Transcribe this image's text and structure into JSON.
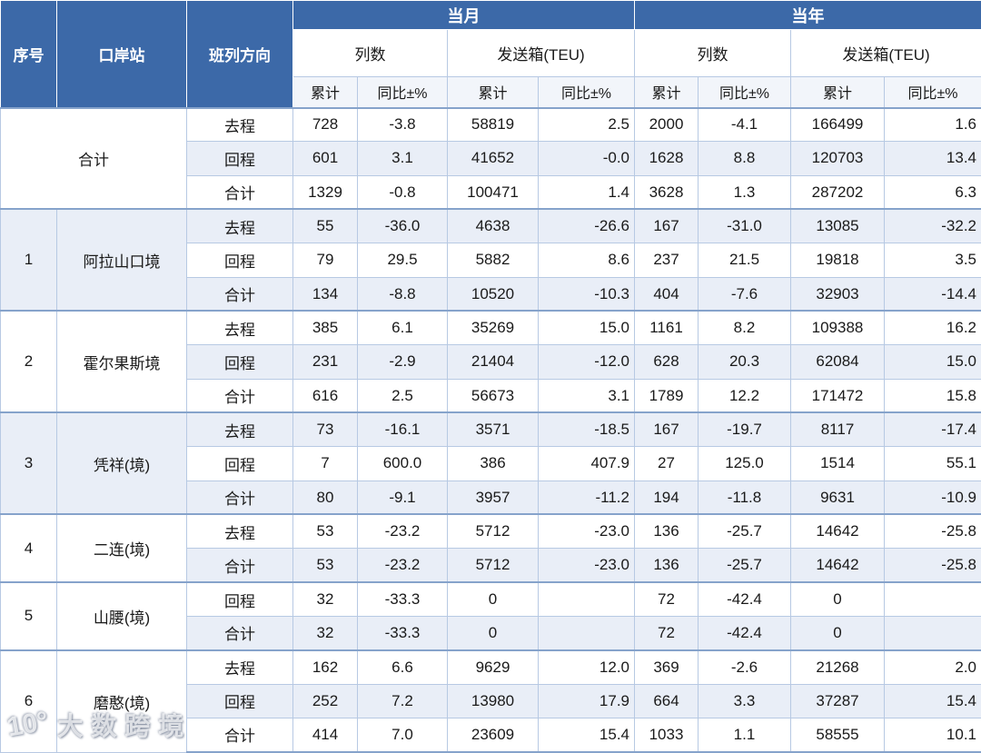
{
  "colors": {
    "header_blue": "#3C69A8",
    "stripe": "#E9EEF7",
    "border": "#B7C9E3",
    "section_border": "#86A3CB"
  },
  "watermark": {
    "logo_text": "10°",
    "text": "大数跨境"
  },
  "table": {
    "header": {
      "col_serial": "序号",
      "col_station": "口岸站",
      "col_direction": "班列方向",
      "group_month": "当月",
      "group_year": "当年",
      "sub_trains": "列数",
      "sub_teu": "发送箱(TEU)",
      "leaf_cum": "累计",
      "leaf_yoy": "同比±%"
    },
    "sections": [
      {
        "serial": "",
        "station": "合计",
        "merged": true,
        "rows": [
          {
            "direction": "去程",
            "values": [
              "728",
              "-3.8",
              "58819",
              "2.5",
              "2000",
              "-4.1",
              "166499",
              "1.6"
            ]
          },
          {
            "direction": "回程",
            "values": [
              "601",
              "3.1",
              "41652",
              "-0.0",
              "1628",
              "8.8",
              "120703",
              "13.4"
            ]
          },
          {
            "direction": "合计",
            "values": [
              "1329",
              "-0.8",
              "100471",
              "1.4",
              "3628",
              "1.3",
              "287202",
              "6.3"
            ]
          }
        ]
      },
      {
        "serial": "1",
        "station": "阿拉山口境",
        "rows": [
          {
            "direction": "去程",
            "values": [
              "55",
              "-36.0",
              "4638",
              "-26.6",
              "167",
              "-31.0",
              "13085",
              "-32.2"
            ]
          },
          {
            "direction": "回程",
            "values": [
              "79",
              "29.5",
              "5882",
              "8.6",
              "237",
              "21.5",
              "19818",
              "3.5"
            ]
          },
          {
            "direction": "合计",
            "values": [
              "134",
              "-8.8",
              "10520",
              "-10.3",
              "404",
              "-7.6",
              "32903",
              "-14.4"
            ]
          }
        ]
      },
      {
        "serial": "2",
        "station": "霍尔果斯境",
        "rows": [
          {
            "direction": "去程",
            "values": [
              "385",
              "6.1",
              "35269",
              "15.0",
              "1161",
              "8.2",
              "109388",
              "16.2"
            ]
          },
          {
            "direction": "回程",
            "values": [
              "231",
              "-2.9",
              "21404",
              "-12.0",
              "628",
              "20.3",
              "62084",
              "15.0"
            ]
          },
          {
            "direction": "合计",
            "values": [
              "616",
              "2.5",
              "56673",
              "3.1",
              "1789",
              "12.2",
              "171472",
              "15.8"
            ]
          }
        ]
      },
      {
        "serial": "3",
        "station": "凭祥(境)",
        "rows": [
          {
            "direction": "去程",
            "values": [
              "73",
              "-16.1",
              "3571",
              "-18.5",
              "167",
              "-19.7",
              "8117",
              "-17.4"
            ]
          },
          {
            "direction": "回程",
            "values": [
              "7",
              "600.0",
              "386",
              "407.9",
              "27",
              "125.0",
              "1514",
              "55.1"
            ]
          },
          {
            "direction": "合计",
            "values": [
              "80",
              "-9.1",
              "3957",
              "-11.2",
              "194",
              "-11.8",
              "9631",
              "-10.9"
            ]
          }
        ]
      },
      {
        "serial": "4",
        "station": "二连(境)",
        "rows": [
          {
            "direction": "去程",
            "values": [
              "53",
              "-23.2",
              "5712",
              "-23.0",
              "136",
              "-25.7",
              "14642",
              "-25.8"
            ]
          },
          {
            "direction": "合计",
            "values": [
              "53",
              "-23.2",
              "5712",
              "-23.0",
              "136",
              "-25.7",
              "14642",
              "-25.8"
            ]
          }
        ]
      },
      {
        "serial": "5",
        "station": "山腰(境)",
        "rows": [
          {
            "direction": "回程",
            "values": [
              "32",
              "-33.3",
              "0",
              "",
              "72",
              "-42.4",
              "0",
              ""
            ]
          },
          {
            "direction": "合计",
            "values": [
              "32",
              "-33.3",
              "0",
              "",
              "72",
              "-42.4",
              "0",
              ""
            ]
          }
        ]
      },
      {
        "serial": "6",
        "station": "磨憨(境)",
        "rows": [
          {
            "direction": "去程",
            "values": [
              "162",
              "6.6",
              "9629",
              "12.0",
              "369",
              "-2.6",
              "21268",
              "2.0"
            ]
          },
          {
            "direction": "回程",
            "values": [
              "252",
              "7.2",
              "13980",
              "17.9",
              "664",
              "3.3",
              "37287",
              "15.4"
            ]
          },
          {
            "direction": "合计",
            "values": [
              "414",
              "7.0",
              "23609",
              "15.4",
              "1033",
              "1.1",
              "58555",
              "10.1"
            ]
          }
        ]
      }
    ]
  }
}
